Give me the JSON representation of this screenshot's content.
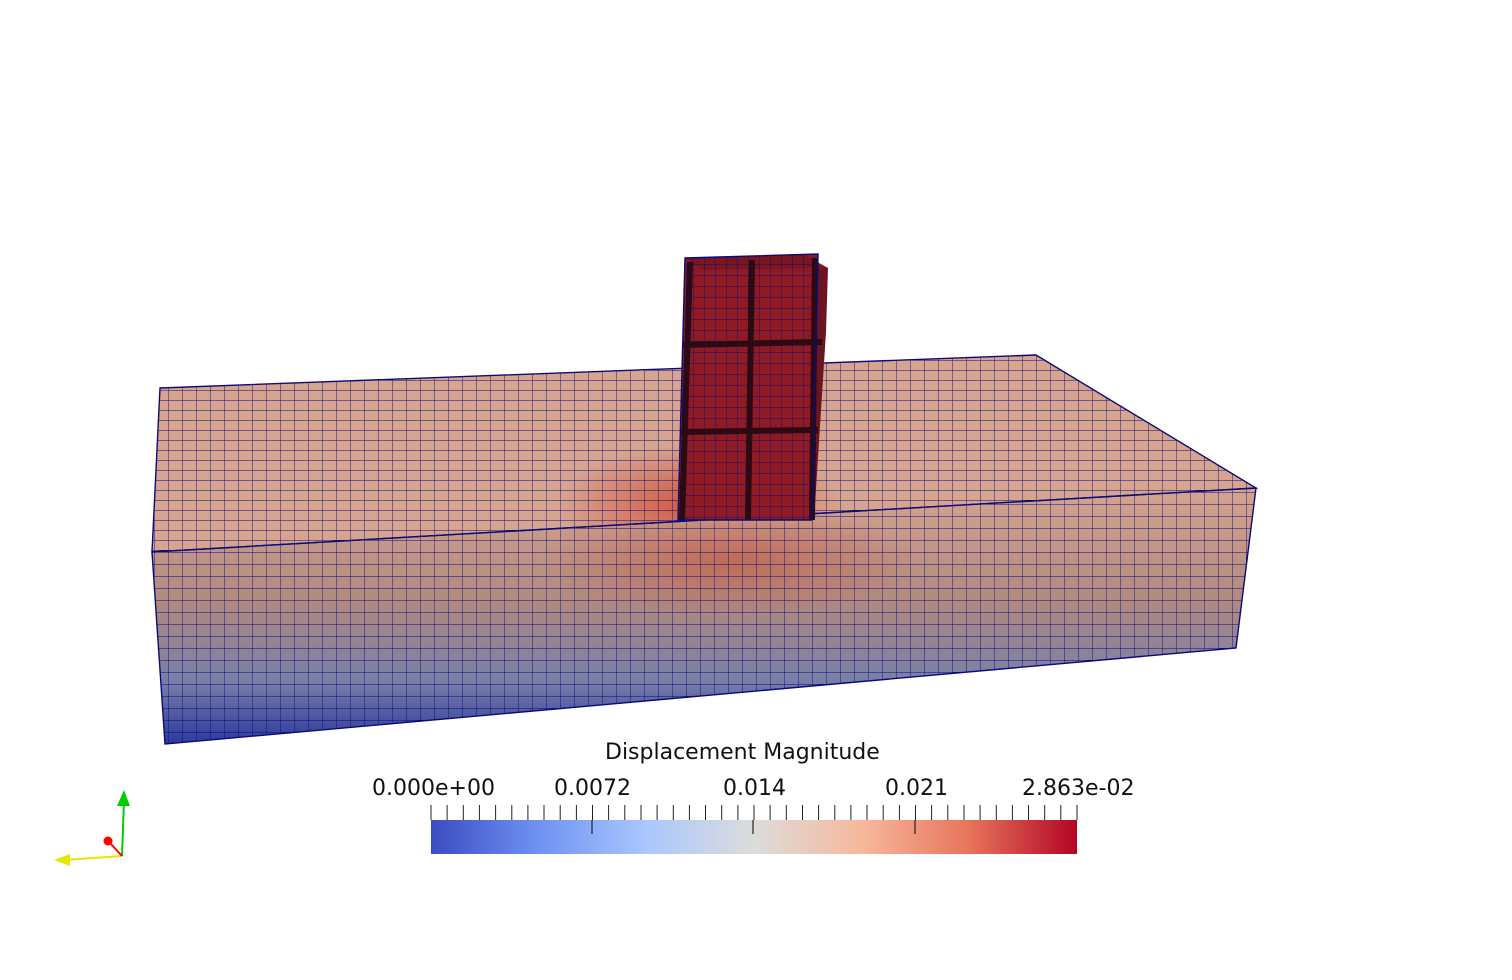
{
  "colorbar": {
    "title": "Displacement Magnitude",
    "min_label": "0.000e+00",
    "max_label": "2.863e-02",
    "tick_labels": [
      "0.0072",
      "0.014",
      "0.021"
    ],
    "range": [
      0,
      0.02863
    ],
    "colormap": [
      "#3b4cc0",
      "#6f92f3",
      "#aac7fd",
      "#dddcdb",
      "#f7b89c",
      "#e7745b",
      "#b40426"
    ]
  },
  "mesh": {
    "edge_color": "#0a0a7a",
    "top_surface_color": "#d6a48f",
    "side_top_color": "#d2a08b",
    "side_bottom_color": "#2c3a9c",
    "structure_color": "#8e1a24"
  },
  "axes": {
    "x_color": "#ff0000",
    "y_color": "#00cc00",
    "z_color": "#e6e600"
  }
}
